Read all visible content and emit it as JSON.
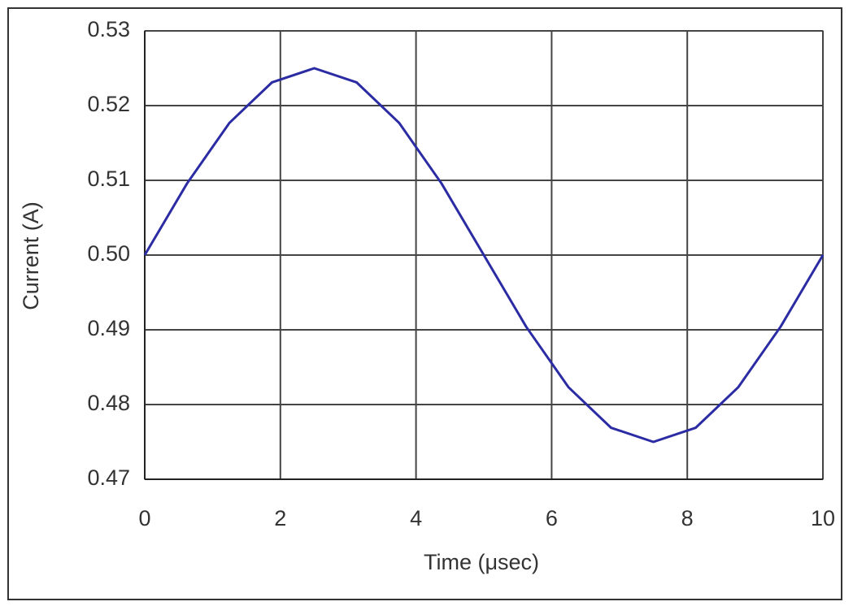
{
  "chart_data": {
    "type": "line",
    "y_label": "Current (A)",
    "x_label": "Time (μsec)",
    "x": [
      0,
      0.625,
      1.25,
      1.875,
      2.5,
      3.125,
      3.75,
      4.375,
      5,
      5.625,
      6.25,
      6.875,
      7.5,
      8.125,
      8.75,
      9.375,
      10
    ],
    "series": [
      {
        "color": "#2b2ba3",
        "values": [
          0.5,
          0.5096,
          0.5177,
          0.5231,
          0.525,
          0.5231,
          0.5177,
          0.5096,
          0.5,
          0.4904,
          0.4823,
          0.4769,
          0.475,
          0.4769,
          0.4823,
          0.4904,
          0.5
        ]
      }
    ],
    "xlim": [
      0,
      10
    ],
    "xticks": [
      0,
      2,
      4,
      6,
      8,
      10
    ],
    "ylim": [
      0.47,
      0.53
    ],
    "yticks": [
      0.47,
      0.48,
      0.49,
      {
        "value": 0.5,
        "label": "0.50"
      },
      0.51,
      0.52,
      0.53
    ],
    "grid": true
  }
}
